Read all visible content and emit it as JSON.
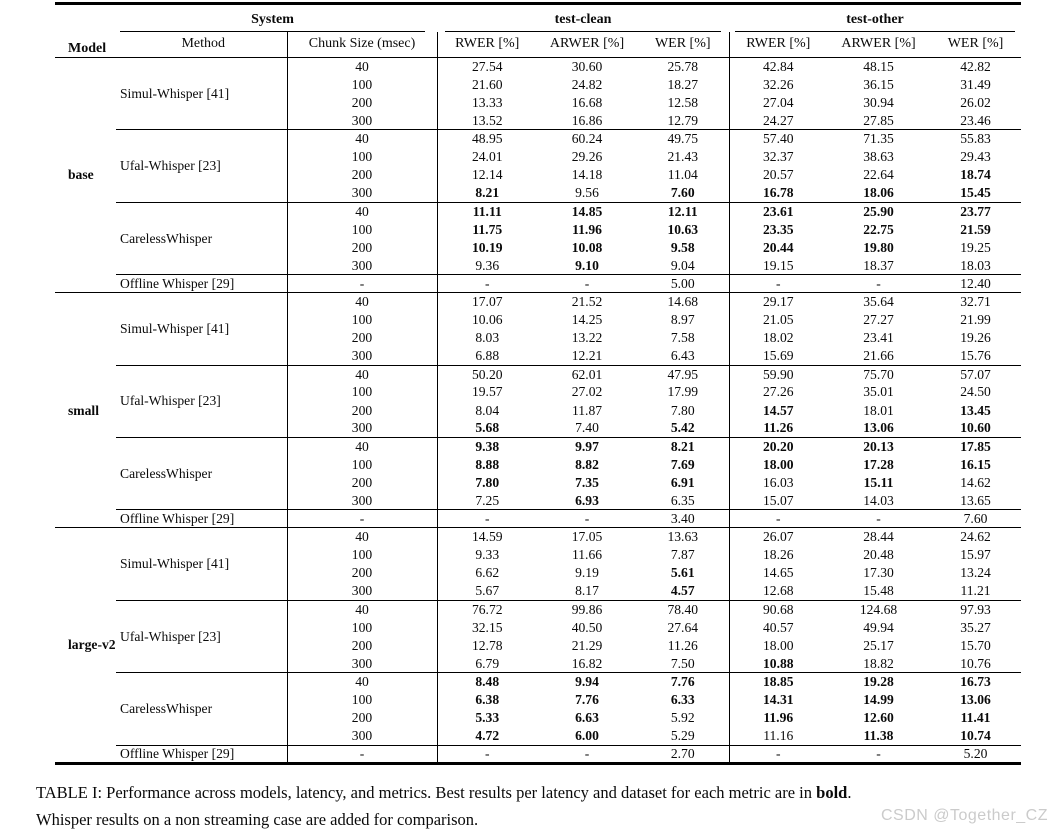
{
  "table": {
    "header": {
      "model": "Model",
      "system": "System",
      "test_clean": "test-clean",
      "test_other": "test-other",
      "sub": [
        "Method",
        "Chunk Size (msec)",
        "RWER [%]",
        "ARWER [%]",
        "WER [%]",
        "RWER [%]",
        "ARWER [%]",
        "WER [%]"
      ]
    },
    "bold_marker": "b:",
    "sections": [
      {
        "model": "base",
        "groups": [
          {
            "method": "Simul-Whisper [41]",
            "rows": [
              {
                "chunk": "40",
                "vals": [
                  "27.54",
                  "30.60",
                  "25.78",
                  "42.84",
                  "48.15",
                  "42.82"
                ]
              },
              {
                "chunk": "100",
                "vals": [
                  "21.60",
                  "24.82",
                  "18.27",
                  "32.26",
                  "36.15",
                  "31.49"
                ]
              },
              {
                "chunk": "200",
                "vals": [
                  "13.33",
                  "16.68",
                  "12.58",
                  "27.04",
                  "30.94",
                  "26.02"
                ]
              },
              {
                "chunk": "300",
                "vals": [
                  "13.52",
                  "16.86",
                  "12.79",
                  "24.27",
                  "27.85",
                  "23.46"
                ]
              }
            ]
          },
          {
            "method": "Ufal-Whisper [23]",
            "rows": [
              {
                "chunk": "40",
                "vals": [
                  "48.95",
                  "60.24",
                  "49.75",
                  "57.40",
                  "71.35",
                  "55.83"
                ]
              },
              {
                "chunk": "100",
                "vals": [
                  "24.01",
                  "29.26",
                  "21.43",
                  "32.37",
                  "38.63",
                  "29.43"
                ]
              },
              {
                "chunk": "200",
                "vals": [
                  "12.14",
                  "14.18",
                  "11.04",
                  "20.57",
                  "22.64",
                  "b:18.74"
                ]
              },
              {
                "chunk": "300",
                "vals": [
                  "b:8.21",
                  "9.56",
                  "b:7.60",
                  "b:16.78",
                  "b:18.06",
                  "b:15.45"
                ]
              }
            ]
          },
          {
            "method": "CarelessWhisper",
            "rows": [
              {
                "chunk": "40",
                "vals": [
                  "b:11.11",
                  "b:14.85",
                  "b:12.11",
                  "b:23.61",
                  "b:25.90",
                  "b:23.77"
                ]
              },
              {
                "chunk": "100",
                "vals": [
                  "b:11.75",
                  "b:11.96",
                  "b:10.63",
                  "b:23.35",
                  "b:22.75",
                  "b:21.59"
                ]
              },
              {
                "chunk": "200",
                "vals": [
                  "b:10.19",
                  "b:10.08",
                  "b:9.58",
                  "b:20.44",
                  "b:19.80",
                  "19.25"
                ]
              },
              {
                "chunk": "300",
                "vals": [
                  "9.36",
                  "b:9.10",
                  "9.04",
                  "19.15",
                  "18.37",
                  "18.03"
                ]
              }
            ]
          },
          {
            "method": "Offline Whisper [29]",
            "rows": [
              {
                "chunk": "-",
                "vals": [
                  "-",
                  "-",
                  "5.00",
                  "-",
                  "-",
                  "12.40"
                ]
              }
            ]
          }
        ]
      },
      {
        "model": "small",
        "groups": [
          {
            "method": "Simul-Whisper [41]",
            "rows": [
              {
                "chunk": "40",
                "vals": [
                  "17.07",
                  "21.52",
                  "14.68",
                  "29.17",
                  "35.64",
                  "32.71"
                ]
              },
              {
                "chunk": "100",
                "vals": [
                  "10.06",
                  "14.25",
                  "8.97",
                  "21.05",
                  "27.27",
                  "21.99"
                ]
              },
              {
                "chunk": "200",
                "vals": [
                  "8.03",
                  "13.22",
                  "7.58",
                  "18.02",
                  "23.41",
                  "19.26"
                ]
              },
              {
                "chunk": "300",
                "vals": [
                  "6.88",
                  "12.21",
                  "6.43",
                  "15.69",
                  "21.66",
                  "15.76"
                ]
              }
            ]
          },
          {
            "method": "Ufal-Whisper [23]",
            "rows": [
              {
                "chunk": "40",
                "vals": [
                  "50.20",
                  "62.01",
                  "47.95",
                  "59.90",
                  "75.70",
                  "57.07"
                ]
              },
              {
                "chunk": "100",
                "vals": [
                  "19.57",
                  "27.02",
                  "17.99",
                  "27.26",
                  "35.01",
                  "24.50"
                ]
              },
              {
                "chunk": "200",
                "vals": [
                  "8.04",
                  "11.87",
                  "7.80",
                  "b:14.57",
                  "18.01",
                  "b:13.45"
                ]
              },
              {
                "chunk": "300",
                "vals": [
                  "b:5.68",
                  "7.40",
                  "b:5.42",
                  "b:11.26",
                  "b:13.06",
                  "b:10.60"
                ]
              }
            ]
          },
          {
            "method": "CarelessWhisper",
            "rows": [
              {
                "chunk": "40",
                "vals": [
                  "b:9.38",
                  "b:9.97",
                  "b:8.21",
                  "b:20.20",
                  "b:20.13",
                  "b:17.85"
                ]
              },
              {
                "chunk": "100",
                "vals": [
                  "b:8.88",
                  "b:8.82",
                  "b:7.69",
                  "b:18.00",
                  "b:17.28",
                  "b:16.15"
                ]
              },
              {
                "chunk": "200",
                "vals": [
                  "b:7.80",
                  "b:7.35",
                  "b:6.91",
                  "16.03",
                  "b:15.11",
                  "14.62"
                ]
              },
              {
                "chunk": "300",
                "vals": [
                  "7.25",
                  "b:6.93",
                  "6.35",
                  "15.07",
                  "14.03",
                  "13.65"
                ]
              }
            ]
          },
          {
            "method": "Offline Whisper [29]",
            "rows": [
              {
                "chunk": "-",
                "vals": [
                  "-",
                  "-",
                  "3.40",
                  "-",
                  "-",
                  "7.60"
                ]
              }
            ]
          }
        ]
      },
      {
        "model": "large-v2",
        "groups": [
          {
            "method": "Simul-Whisper [41]",
            "rows": [
              {
                "chunk": "40",
                "vals": [
                  "14.59",
                  "17.05",
                  "13.63",
                  "26.07",
                  "28.44",
                  "24.62"
                ]
              },
              {
                "chunk": "100",
                "vals": [
                  "9.33",
                  "11.66",
                  "7.87",
                  "18.26",
                  "20.48",
                  "15.97"
                ]
              },
              {
                "chunk": "200",
                "vals": [
                  "6.62",
                  "9.19",
                  "b:5.61",
                  "14.65",
                  "17.30",
                  "13.24"
                ]
              },
              {
                "chunk": "300",
                "vals": [
                  "5.67",
                  "8.17",
                  "b:4.57",
                  "12.68",
                  "15.48",
                  "11.21"
                ]
              }
            ]
          },
          {
            "method": "Ufal-Whisper [23]",
            "rows": [
              {
                "chunk": "40",
                "vals": [
                  "76.72",
                  "99.86",
                  "78.40",
                  "90.68",
                  "124.68",
                  "97.93"
                ]
              },
              {
                "chunk": "100",
                "vals": [
                  "32.15",
                  "40.50",
                  "27.64",
                  "40.57",
                  "49.94",
                  "35.27"
                ]
              },
              {
                "chunk": "200",
                "vals": [
                  "12.78",
                  "21.29",
                  "11.26",
                  "18.00",
                  "25.17",
                  "15.70"
                ]
              },
              {
                "chunk": "300",
                "vals": [
                  "6.79",
                  "16.82",
                  "7.50",
                  "b:10.88",
                  "18.82",
                  "10.76"
                ]
              }
            ]
          },
          {
            "method": "CarelessWhisper",
            "rows": [
              {
                "chunk": "40",
                "vals": [
                  "b:8.48",
                  "b:9.94",
                  "b:7.76",
                  "b:18.85",
                  "b:19.28",
                  "b:16.73"
                ]
              },
              {
                "chunk": "100",
                "vals": [
                  "b:6.38",
                  "b:7.76",
                  "b:6.33",
                  "b:14.31",
                  "b:14.99",
                  "b:13.06"
                ]
              },
              {
                "chunk": "200",
                "vals": [
                  "b:5.33",
                  "b:6.63",
                  "5.92",
                  "b:11.96",
                  "b:12.60",
                  "b:11.41"
                ]
              },
              {
                "chunk": "300",
                "vals": [
                  "b:4.72",
                  "b:6.00",
                  "5.29",
                  "11.16",
                  "b:11.38",
                  "b:10.74"
                ]
              }
            ]
          },
          {
            "method": "Offline Whisper [29]",
            "rows": [
              {
                "chunk": "-",
                "vals": [
                  "-",
                  "-",
                  "2.70",
                  "-",
                  "-",
                  "5.20"
                ]
              }
            ]
          }
        ]
      }
    ]
  },
  "caption": {
    "part1": "TABLE I: Performance across models, latency, and metrics. Best results per latency and dataset for each metric are in ",
    "bold_word": "bold",
    "part2": ".",
    "line2": "Whisper results on a non streaming case are added for comparison."
  },
  "watermark": "CSDN @Together_CZ",
  "colors": {
    "background": "#ffffff",
    "rule": "#000000",
    "text": "#0a0a0a",
    "watermark": "#cbcbcb"
  }
}
